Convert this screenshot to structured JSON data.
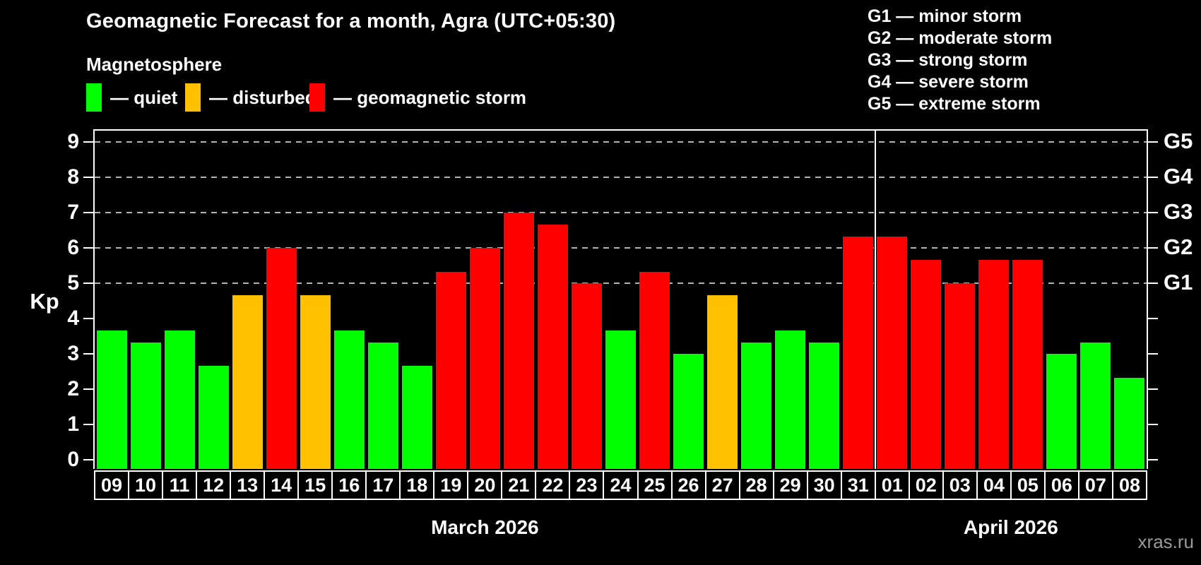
{
  "header": {
    "title": "Geomagnetic Forecast for a month, Agra (UTC+05:30)",
    "subtitle": "Magnetosphere",
    "legend": [
      {
        "state": "quiet",
        "label": "— quiet",
        "color": "#00ff00"
      },
      {
        "state": "disturbed",
        "label": "— disturbed",
        "color": "#ffc000"
      },
      {
        "state": "storm",
        "label": "— geomagnetic storm",
        "color": "#ff0000"
      }
    ],
    "g_scale_legend": [
      "G1 — minor storm",
      "G2 — moderate storm",
      "G3 — strong storm",
      "G4 — severe storm",
      "G5 — extreme storm"
    ]
  },
  "watermark": "xras.ru",
  "chart_data": {
    "type": "bar",
    "title": "Geomagnetic Forecast for a month, Agra (UTC+05:30)",
    "ylabel": "Kp",
    "ylim": [
      0,
      9.4
    ],
    "yticks": [
      0,
      1,
      2,
      3,
      4,
      5,
      6,
      7,
      8,
      9
    ],
    "grid_levels": [
      5,
      6,
      7,
      8,
      9
    ],
    "grid": "dashed",
    "right_axis": [
      {
        "kp": 5,
        "label": "G1"
      },
      {
        "kp": 6,
        "label": "G2"
      },
      {
        "kp": 7,
        "label": "G3"
      },
      {
        "kp": 8,
        "label": "G4"
      },
      {
        "kp": 9,
        "label": "G5"
      }
    ],
    "categories": [
      "09",
      "10",
      "11",
      "12",
      "13",
      "14",
      "15",
      "16",
      "17",
      "18",
      "19",
      "20",
      "21",
      "22",
      "23",
      "24",
      "25",
      "26",
      "27",
      "28",
      "29",
      "30",
      "31",
      "01",
      "02",
      "03",
      "04",
      "05",
      "06",
      "07",
      "08"
    ],
    "values": [
      3.67,
      3.33,
      3.67,
      2.67,
      4.67,
      6,
      4.67,
      3.67,
      3.33,
      2.67,
      5.33,
      6,
      7,
      6.67,
      5,
      3.67,
      5.33,
      3,
      4.67,
      3.33,
      3.67,
      3.33,
      6.33,
      6.33,
      5.67,
      5,
      5.67,
      5.67,
      3,
      3.33,
      2.33
    ],
    "states": [
      "quiet",
      "quiet",
      "quiet",
      "quiet",
      "disturbed",
      "storm",
      "disturbed",
      "quiet",
      "quiet",
      "quiet",
      "storm",
      "storm",
      "storm",
      "storm",
      "storm",
      "quiet",
      "storm",
      "quiet",
      "disturbed",
      "quiet",
      "quiet",
      "quiet",
      "storm",
      "storm",
      "storm",
      "storm",
      "storm",
      "storm",
      "quiet",
      "quiet",
      "quiet"
    ],
    "state_colors": {
      "quiet": "#00ff00",
      "disturbed": "#ffc000",
      "storm": "#ff0000"
    },
    "months": [
      {
        "label": "March 2026",
        "start_index": 0,
        "days": 23
      },
      {
        "label": "April 2026",
        "start_index": 23,
        "days": 8
      }
    ],
    "separator_after_index": 22
  }
}
